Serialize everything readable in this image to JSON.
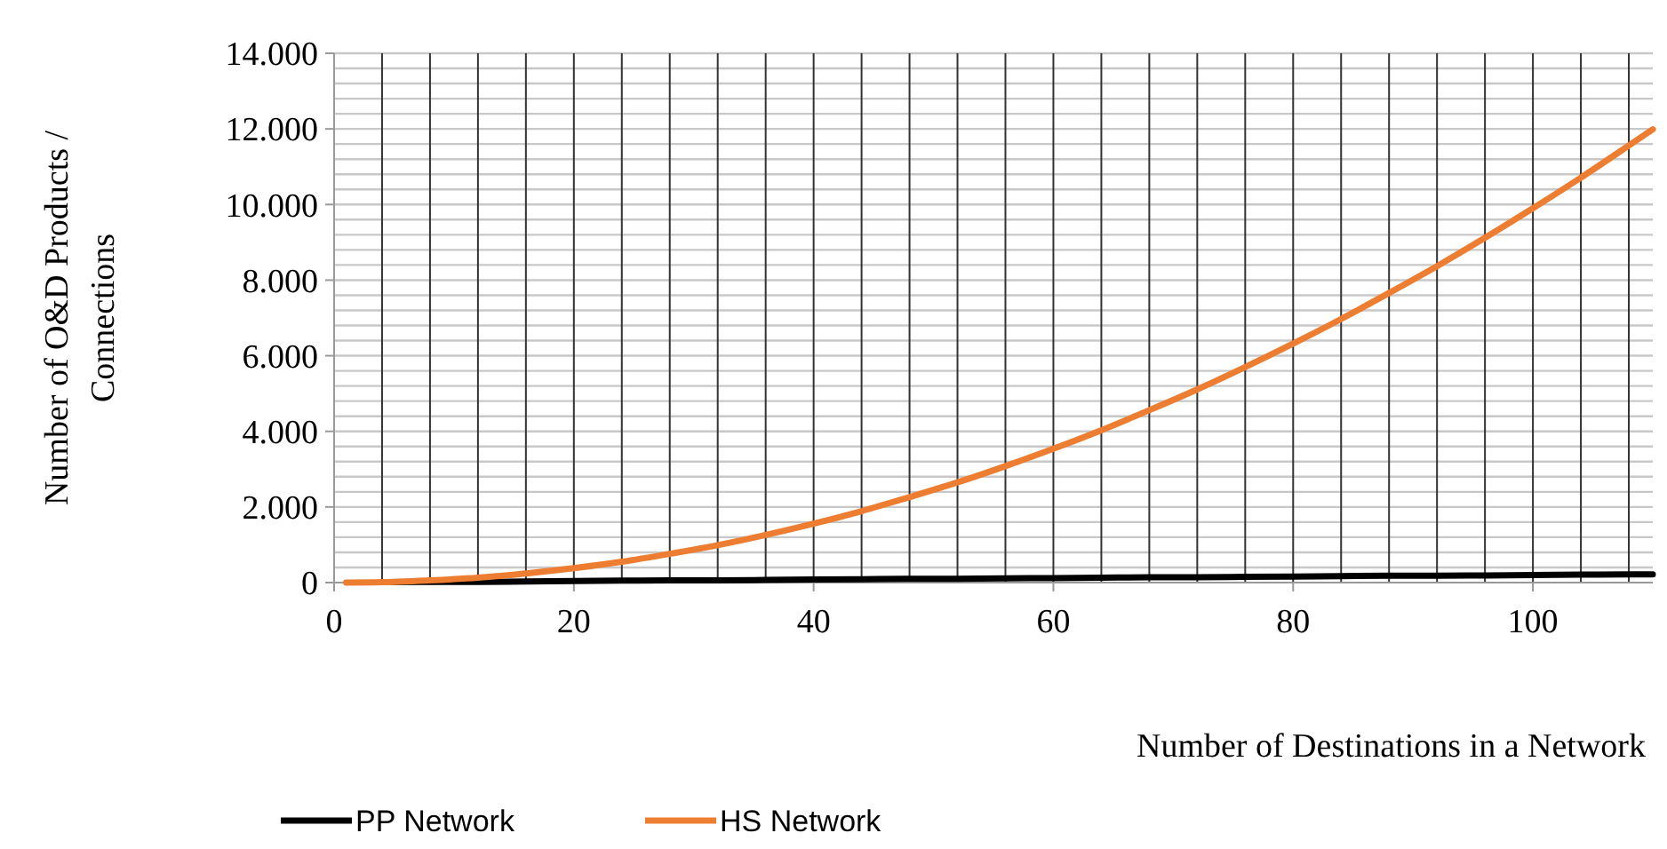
{
  "chart_data": {
    "type": "line",
    "xlabel": "Number of Destinations in a Network",
    "ylabel": "Number of O&D Products / Connections",
    "x": [
      1,
      4,
      8,
      12,
      16,
      20,
      24,
      28,
      32,
      36,
      40,
      44,
      48,
      52,
      56,
      60,
      64,
      68,
      72,
      76,
      80,
      84,
      88,
      92,
      96,
      100,
      104,
      108,
      110
    ],
    "series": [
      {
        "name": "PP Network",
        "color": "#000000",
        "values": [
          null,
          10,
          20,
          20,
          30,
          40,
          50,
          60,
          60,
          70,
          80,
          90,
          100,
          100,
          110,
          120,
          130,
          140,
          140,
          150,
          160,
          170,
          180,
          180,
          190,
          200,
          210,
          220,
          220
        ]
      },
      {
        "name": "HS Network",
        "color": "#ed7d31",
        "values": [
          0,
          10,
          60,
          130,
          240,
          380,
          550,
          760,
          990,
          1260,
          1560,
          1890,
          2260,
          2650,
          3080,
          3540,
          4030,
          4560,
          5110,
          5700,
          6320,
          6970,
          7660,
          8370,
          9120,
          9900,
          10710,
          11560,
          11990
        ]
      }
    ],
    "xlim": [
      0,
      110
    ],
    "xticks": [
      0,
      20,
      40,
      60,
      80,
      100
    ],
    "ylim": [
      0,
      14000
    ],
    "yticks": [
      {
        "value": 0,
        "label": "0"
      },
      {
        "value": 2000,
        "label": "2.000"
      },
      {
        "value": 4000,
        "label": "4.000"
      },
      {
        "value": 6000,
        "label": "6.000"
      },
      {
        "value": 8000,
        "label": "8.000"
      },
      {
        "value": 10000,
        "label": "10.000"
      },
      {
        "value": 12000,
        "label": "12.000"
      },
      {
        "value": 14000,
        "label": "14.000"
      }
    ],
    "grid": true,
    "legend": "bottom",
    "marker": "none",
    "line_style": "solid"
  }
}
